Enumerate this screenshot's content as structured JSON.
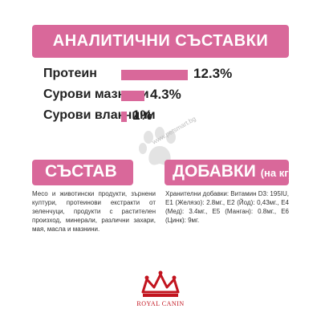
{
  "header": {
    "title": "АНАЛИТИЧНИ СЪСТАВКИ"
  },
  "analytics": {
    "items": [
      {
        "label": "Протеин",
        "value": "12.3%",
        "fraction": 0.123
      },
      {
        "label": "Сурови мазнини",
        "value": "4.3%",
        "fraction": 0.043
      },
      {
        "label": "Сурови влакнини",
        "value": "1%",
        "fraction": 0.01
      }
    ]
  },
  "watermark": {
    "text": "www.petsmart.bg"
  },
  "composition": {
    "title": "СЪСТАВ",
    "text": "Месо и животински продукти, зърнени култури, протеинови екстракти от зеленчуци, продукти с растителен произход, минерали, различни захари, мая, масла и мазнини."
  },
  "additives": {
    "title": "ДОБАВКИ",
    "unit": "(на кг)",
    "text": "Хранителни добавки: Витамин D3: 195IU, E1 (Желязо): 2.8мг., E2 (Йод): 0,43мг., E4 (Мед): 3.4мг., E5 (Манган): 0.8мг., E6 (Цинк): 9мг."
  },
  "logo": {
    "text": "ROYAL CANIN"
  },
  "colors": {
    "accent": "#d9689a",
    "brand_red": "#c2141f"
  }
}
